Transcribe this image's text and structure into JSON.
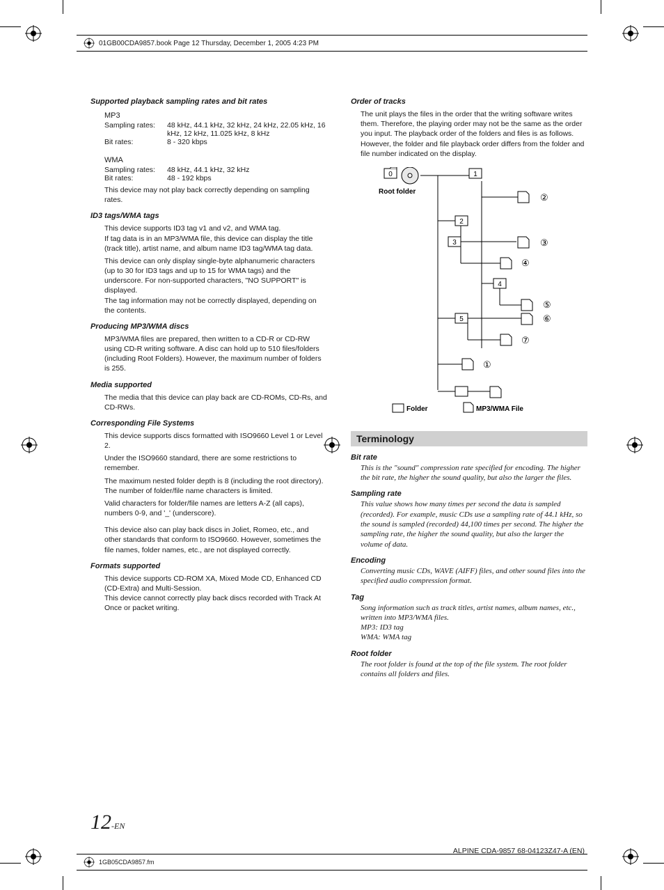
{
  "print": {
    "header": "01GB00CDA9857.book  Page 12  Thursday, December 1, 2005  4:23 PM",
    "footer_file": "1GB05CDA9857.fm",
    "footer_model": "ALPINE CDA-9857 68-04123Z47-A (EN)",
    "page_number": "12",
    "page_suffix": "-EN"
  },
  "left": {
    "s1": {
      "title": "Supported playback sampling rates and bit rates",
      "mp3": "MP3",
      "mp3_sr_k": "Sampling rates:",
      "mp3_sr_v": "48 kHz, 44.1 kHz, 32 kHz, 24 kHz, 22.05 kHz, 16 kHz, 12 kHz, 11.025 kHz, 8 kHz",
      "mp3_br_k": "Bit rates:",
      "mp3_br_v": "8 - 320 kbps",
      "wma": "WMA",
      "wma_sr_k": "Sampling rates:",
      "wma_sr_v": "48 kHz, 44.1 kHz, 32 kHz",
      "wma_br_k": "Bit rates:",
      "wma_br_v": "48 - 192 kbps",
      "note": "This device may not play back correctly depending on sampling rates."
    },
    "s2": {
      "title": "ID3 tags/WMA tags",
      "p1": "This device supports ID3 tag v1 and v2, and WMA tag.\nIf tag data is in an MP3/WMA file, this device can display the title (track title), artist name, and album name ID3 tag/WMA tag data.",
      "p2": "This device can only display single-byte alphanumeric characters (up to 30 for ID3 tags and up to 15 for WMA tags) and the underscore. For non-supported characters, \"NO SUPPORT\" is displayed.\nThe tag information may not be correctly displayed, depending on the contents."
    },
    "s3": {
      "title": "Producing MP3/WMA discs",
      "p1": "MP3/WMA files are prepared, then written to a CD-R or CD-RW using CD-R writing software. A disc can hold up to 510 files/folders (including Root Folders). However, the maximum number of folders is 255."
    },
    "s4": {
      "title": "Media supported",
      "p1": "The media that this device can play back are CD-ROMs, CD-Rs, and CD-RWs."
    },
    "s5": {
      "title": "Corresponding File Systems",
      "p1": "This device supports discs formatted with ISO9660 Level 1 or Level 2.",
      "p2": "Under the ISO9660 standard, there are some restrictions to remember.",
      "p3": "The maximum nested folder depth is 8 (including the root directory). The number of folder/file name characters is limited.",
      "p4": "Valid characters for folder/file names are letters A-Z (all caps), numbers 0-9, and '_' (underscore).",
      "p5": "This device also can play back discs in Joliet, Romeo, etc., and other standards that conform to ISO9660. However, sometimes the file names, folder names, etc., are not displayed correctly."
    },
    "s6": {
      "title": "Formats supported",
      "p1": "This device supports CD-ROM XA, Mixed Mode CD, Enhanced CD (CD-Extra) and Multi-Session.\nThis device cannot correctly play back discs recorded with Track At Once or packet writing."
    }
  },
  "right": {
    "order": {
      "title": "Order of tracks",
      "p1": "The unit plays the files in the order that the writing software writes them. Therefore, the playing order may not be the same as the order you input. The playback order of the folders and files is as follows. However, the folder and file playback order differs from the folder and file number indicated on the display."
    },
    "diagram": {
      "root_label": "Root folder",
      "folder_label": "Folder",
      "file_label": "MP3/WMA File",
      "folder_nums": [
        "0",
        "1",
        "2",
        "3",
        "4",
        "5"
      ],
      "file_nums": [
        "①",
        "②",
        "③",
        "④",
        "⑤",
        "⑥",
        "⑦"
      ],
      "colors": {
        "line": "#000000",
        "fill": "#ffffff"
      }
    },
    "terminology": {
      "heading": "Terminology",
      "terms": [
        {
          "name": "Bit rate",
          "body": "This is the \"sound\" compression rate specified for encoding. The higher the bit rate, the higher the sound quality, but also the larger the files."
        },
        {
          "name": "Sampling rate",
          "body": "This value shows how many times per second the data is sampled (recorded). For example, music CDs use a sampling rate of 44.1 kHz, so the sound is sampled (recorded) 44,100 times per second. The higher the sampling rate, the higher the sound quality, but also the larger the volume of data."
        },
        {
          "name": "Encoding",
          "body": "Converting music CDs, WAVE (AIFF) files, and other sound files into the specified audio compression format."
        },
        {
          "name": "Tag",
          "body": "Song information such as track titles, artist names, album names, etc., written into MP3/WMA files.\nMP3: ID3 tag\nWMA: WMA tag"
        },
        {
          "name": "Root folder",
          "body": "The root folder is found at the top of the file system. The root folder contains all folders and files."
        }
      ]
    }
  }
}
